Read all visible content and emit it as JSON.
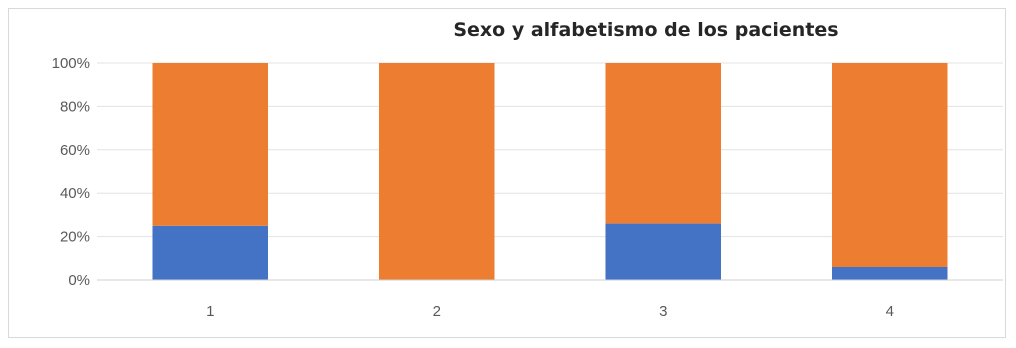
{
  "chart_data": {
    "type": "bar",
    "stacked": "percent",
    "title": "Sexo y alfabetismo de los pacientes",
    "xlabel": "",
    "ylabel": "",
    "categories": [
      "1",
      "2",
      "3",
      "4"
    ],
    "ylim": [
      0,
      100
    ],
    "yticks": [
      "0%",
      "20%",
      "40%",
      "60%",
      "80%",
      "100%"
    ],
    "grid": true,
    "legend": "none",
    "series": [
      {
        "values": [
          25,
          0,
          26,
          6
        ],
        "color": "#4472C4"
      },
      {
        "values": [
          75,
          100,
          74,
          94
        ],
        "color": "#ED7D31"
      }
    ]
  }
}
